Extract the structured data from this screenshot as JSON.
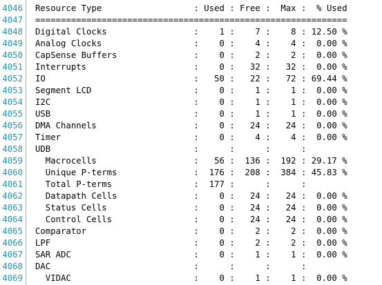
{
  "editor": {
    "line_numbers": [
      "4046",
      "4047",
      "4048",
      "4049",
      "4050",
      "4051",
      "4052",
      "4053",
      "4054",
      "4055",
      "4056",
      "4057",
      "4058",
      "4059",
      "4060",
      "4061",
      "4062",
      "4063",
      "4064",
      "4065",
      "4066",
      "4067",
      "4068",
      "4069"
    ],
    "lines": [
      "Resource Type                  : Used : Free :  Max :  % Used",
      "=============================================================",
      "Digital Clocks                 :    1 :    7 :    8 : 12.50 %",
      "Analog Clocks                  :    0 :    4 :    4 :  0.00 %",
      "CapSense Buffers               :    0 :    2 :    2 :  0.00 %",
      "Interrupts                     :    0 :   32 :   32 :  0.00 %",
      "IO                             :   50 :   22 :   72 : 69.44 %",
      "Segment LCD                    :    0 :    1 :    1 :  0.00 %",
      "I2C                            :    0 :    1 :    1 :  0.00 %",
      "USB                            :    0 :    1 :    1 :  0.00 %",
      "DMA Channels                   :    0 :   24 :   24 :  0.00 %",
      "Timer                          :    0 :    4 :    4 :  0.00 %",
      "UDB                            :      :      :      :        ",
      "  Macrocells                   :   56 :  136 :  192 : 29.17 %",
      "  Unique P-terms               :  176 :  208 :  384 : 45.83 %",
      "  Total P-terms                :  177 :      :      :        ",
      "  Datapath Cells               :    0 :   24 :   24 :  0.00 %",
      "  Status Cells                 :    0 :   24 :   24 :  0.00 %",
      "  Control Cells                :    0 :   24 :   24 :  0.00 %",
      "Comparator                     :    0 :    2 :    2 :  0.00 %",
      "LPF                            :    0 :    2 :    2 :  0.00 %",
      "SAR ADC                        :    0 :    1 :    1 :  0.00 %",
      "DAC                            :      :      :      :        ",
      "  VIDAC                        :    0 :    1 :    1 :  0.00 %"
    ]
  },
  "colors": {
    "line_number": "#2b91af",
    "gutter_border": "#7bc08e",
    "text": "#000000",
    "background": "#ffffff"
  }
}
